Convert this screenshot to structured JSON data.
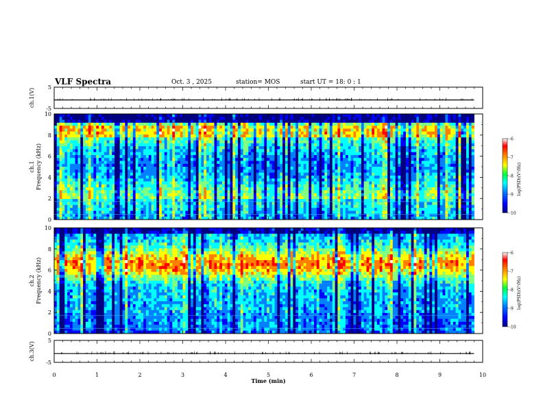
{
  "header": {
    "title": "VLF Spectra",
    "date": "Oct. 3 , 2025",
    "station": "station= MOS",
    "start_ut": "start UT = 18: 0 : 1"
  },
  "chart_data": [
    {
      "type": "line",
      "panel": "ch1-waveform",
      "ylabel": "ch.1(V)",
      "ylim": [
        -5,
        5
      ],
      "y_ticks": [
        "5",
        "-5"
      ],
      "x": [
        0,
        9.8
      ],
      "values": [
        -1.0,
        -1.0
      ],
      "xlim": [
        0,
        10
      ]
    },
    {
      "type": "heatmap",
      "panel": "ch1-spectrogram",
      "ylabel": "ch.1\nFrequency (kHz)",
      "ylim": [
        0,
        10
      ],
      "y_ticks": [
        "0",
        "2",
        "4",
        "6",
        "8",
        "10"
      ],
      "xlim": [
        0,
        9.8
      ],
      "colorbar": {
        "label": "log(PSD)(V²/Hz)",
        "range": [
          -10,
          -6
        ],
        "ticks": [
          "-6",
          "-7",
          "-8",
          "-9",
          "-10"
        ]
      },
      "dominant_band_khz": [
        0.5,
        9.0
      ]
    },
    {
      "type": "heatmap",
      "panel": "ch2-spectrogram",
      "ylabel": "ch.2\nFrequency (kHz)",
      "ylim": [
        0,
        10
      ],
      "y_ticks": [
        "0",
        "2",
        "4",
        "6",
        "8",
        "10"
      ],
      "xlim": [
        0,
        9.8
      ],
      "colorbar": {
        "label": "log(PSD)(V²/Hz)",
        "range": [
          -10,
          -6
        ],
        "ticks": [
          "-6",
          "-7",
          "-8",
          "-9",
          "-10"
        ]
      },
      "dominant_band_khz": [
        5.0,
        8.0
      ]
    },
    {
      "type": "line",
      "panel": "ch2-waveform",
      "ylabel": "ch.3(V)",
      "ylim": [
        -5,
        5
      ],
      "y_ticks": [
        "5",
        "-5"
      ],
      "x": [
        0,
        9.8
      ],
      "values": [
        -1.0,
        -1.0
      ],
      "xlim": [
        0,
        10
      ]
    }
  ],
  "x_axis": {
    "label": "Time (min)",
    "ticks": [
      "0",
      "1",
      "2",
      "3",
      "4",
      "5",
      "6",
      "7",
      "8",
      "9",
      "10"
    ],
    "range": [
      0,
      10
    ]
  },
  "colors": {
    "colormap": [
      "#000080",
      "#0000ff",
      "#0080ff",
      "#00ffff",
      "#80ff80",
      "#ffff00",
      "#ff8000",
      "#ff0000",
      "#ffffff"
    ],
    "background": "#ffffff",
    "axis": "#000000"
  }
}
